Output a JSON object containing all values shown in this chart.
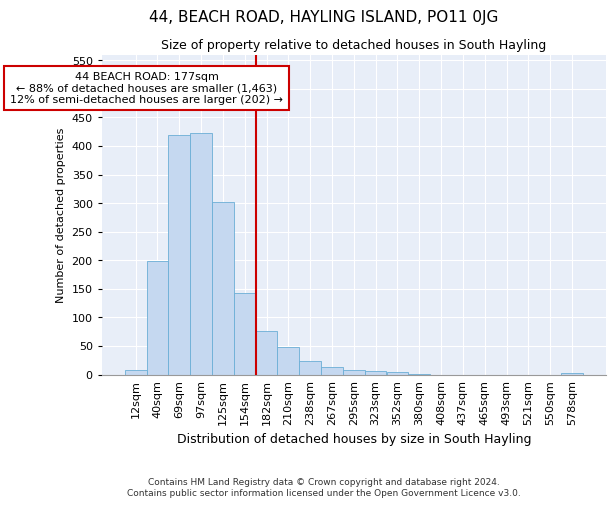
{
  "title": "44, BEACH ROAD, HAYLING ISLAND, PO11 0JG",
  "subtitle": "Size of property relative to detached houses in South Hayling",
  "xlabel": "Distribution of detached houses by size in South Hayling",
  "ylabel": "Number of detached properties",
  "categories": [
    "12sqm",
    "40sqm",
    "69sqm",
    "97sqm",
    "125sqm",
    "154sqm",
    "182sqm",
    "210sqm",
    "238sqm",
    "267sqm",
    "295sqm",
    "323sqm",
    "352sqm",
    "380sqm",
    "408sqm",
    "437sqm",
    "465sqm",
    "493sqm",
    "521sqm",
    "550sqm",
    "578sqm"
  ],
  "values": [
    8,
    198,
    420,
    422,
    302,
    143,
    77,
    48,
    24,
    13,
    8,
    7,
    4,
    1,
    0,
    0,
    0,
    0,
    0,
    0,
    3
  ],
  "bar_color": "#c5d8f0",
  "bar_edge_color": "#6baed6",
  "vline_x": 6.0,
  "vline_color": "#cc0000",
  "annotation_text": "44 BEACH ROAD: 177sqm\n← 88% of detached houses are smaller (1,463)\n12% of semi-detached houses are larger (202) →",
  "annotation_box_color": "#ffffff",
  "annotation_box_edge_color": "#cc0000",
  "footnote": "Contains HM Land Registry data © Crown copyright and database right 2024.\nContains public sector information licensed under the Open Government Licence v3.0.",
  "ylim": [
    0,
    560
  ],
  "title_fontsize": 11,
  "subtitle_fontsize": 9,
  "xlabel_fontsize": 9,
  "ylabel_fontsize": 8,
  "tick_fontsize": 8,
  "annot_fontsize": 8,
  "footnote_fontsize": 6.5,
  "bar_width": 1.0,
  "background_color": "#e8eef8"
}
